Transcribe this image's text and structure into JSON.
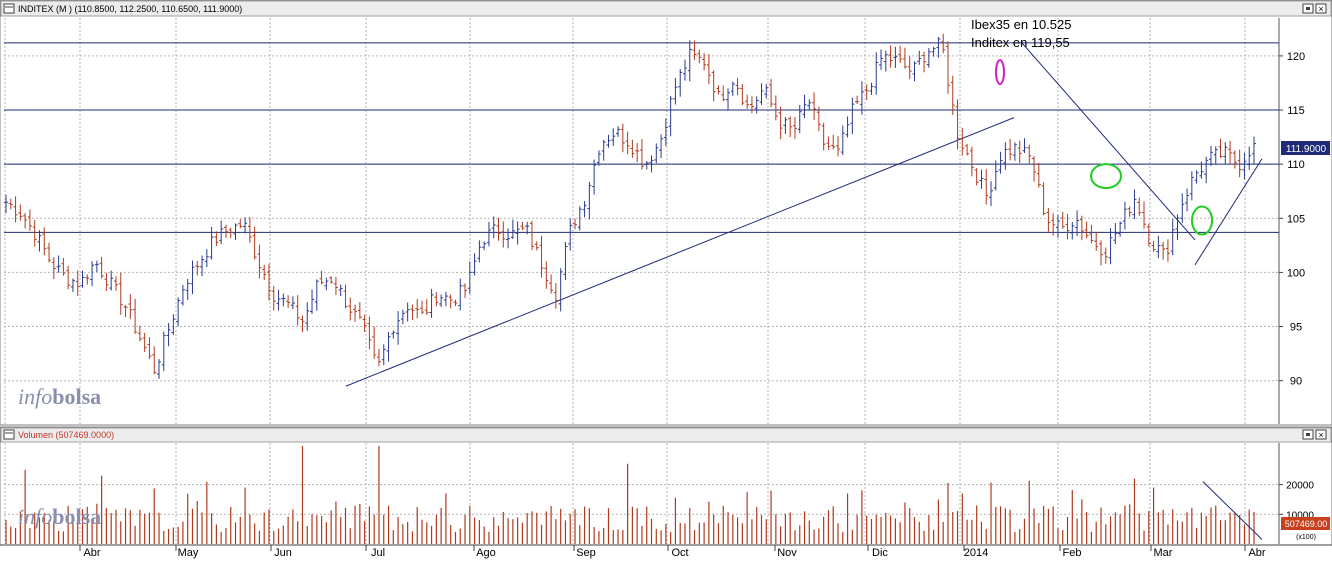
{
  "price_panel": {
    "title": "INDITEX (M ) (110.8500, 112.2500, 110.6500, 111.9000)",
    "last_price_label": "111.9000",
    "watermark_italic": "info",
    "watermark_bold": "bolsa",
    "annotations": [
      "Ibex35 en 10.525",
      "Inditex en 119,55"
    ]
  },
  "volume_panel": {
    "title": "Volumen (507469.0000)",
    "last_value_label": "507469.00",
    "scale_label": "(x100)",
    "watermark_italic": "info",
    "watermark_bold": "bolsa"
  },
  "x_axis_labels": [
    "Abr",
    "May",
    "Jun",
    "Jul",
    "Ago",
    "Sep",
    "Oct",
    "Nov",
    "Dic",
    "2014",
    "Feb",
    "Mar",
    "Abr"
  ],
  "colors": {
    "up": "#2a3b8f",
    "down": "#b03a1e",
    "volume": "#b03a1e",
    "trendline": "#1f2a78",
    "horizontal_level": "#1f2a78",
    "grid": "#b5b5b5",
    "title_bar": "#c0c0c0",
    "price_tag": "#1f2a78",
    "volume_tag": "#c8401e",
    "ellipse_green": "#22cc22",
    "ellipse_magenta": "#cc22cc",
    "watermark": "#8a8fb0"
  },
  "chart_data": [
    {
      "type": "ohlc",
      "title": "INDITEX (M ) (110.8500, 112.2500, 110.6500, 111.9000)",
      "ylim": [
        86,
        123.5
      ],
      "y_ticks": [
        90,
        95,
        100,
        105,
        110,
        115,
        120
      ],
      "grid": true,
      "last_close": 111.9,
      "x_tick_labels": [
        "Abr",
        "May",
        "Jun",
        "Jul",
        "Ago",
        "Sep",
        "Oct",
        "Nov",
        "Dic",
        "2014",
        "Feb",
        "Mar",
        "Abr"
      ],
      "close_path": [
        106.5,
        105.5,
        103.5,
        101,
        99.5,
        99,
        101,
        99,
        97,
        94,
        91,
        95,
        99,
        101,
        103,
        104,
        104.5,
        101,
        98,
        97,
        95.5,
        99,
        99.5,
        97,
        95,
        91,
        95,
        97,
        96,
        98,
        97.5,
        98.5,
        103,
        104,
        103.5,
        104,
        101,
        98,
        104,
        107,
        112,
        113,
        112,
        110,
        112,
        117,
        120,
        119.5,
        116,
        118,
        115,
        117,
        114,
        113,
        116,
        112,
        111,
        115,
        117,
        120,
        119.5,
        118.5,
        120.5,
        121,
        113,
        110,
        107,
        111,
        111.5,
        110.5,
        105,
        104,
        105,
        103,
        102,
        104.5,
        107,
        103,
        101.5,
        106,
        109,
        110.5,
        111,
        110,
        111.9
      ],
      "horizontal_levels": [
        121.2,
        115,
        110,
        103.7
      ],
      "trend_lines": [
        {
          "from": [
            "Jun",
            89.5
          ],
          "to": [
            "Ene 2014",
            114.3
          ]
        },
        {
          "from": [
            "Ene 2014",
            121.2
          ],
          "to": [
            "Mar",
            103
          ]
        },
        {
          "from": [
            "Mar",
            100.7
          ],
          "to": [
            "Abr",
            110.5
          ]
        }
      ],
      "annotations": [
        "Ibex35 en 10.525",
        "Inditex en 119,55"
      ]
    },
    {
      "type": "bar",
      "title": "Volumen (507469.0000)",
      "ylim": [
        0,
        34000
      ],
      "y_ticks": [
        10000,
        20000
      ],
      "unit": "(x100)",
      "last_value": 507469.0
    }
  ]
}
